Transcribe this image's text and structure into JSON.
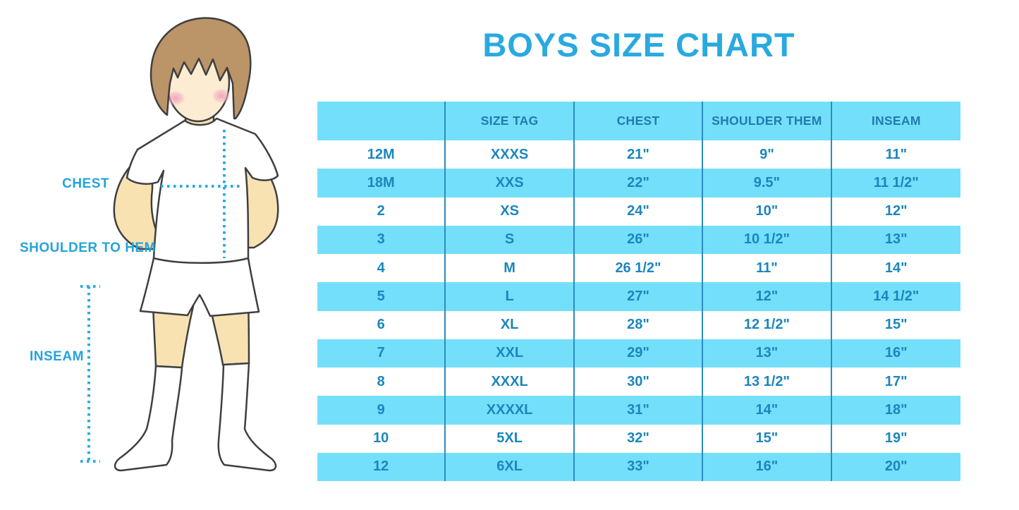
{
  "title": "BOYS SIZE CHART",
  "diagram": {
    "labels": {
      "chest": "CHEST",
      "shoulder_to_hem": "SHOULDER TO HEM",
      "inseam": "INSEAM"
    }
  },
  "chart_data": {
    "type": "table",
    "title": "BOYS SIZE CHART",
    "columns": [
      "",
      "SIZE TAG",
      "CHEST",
      "SHOULDER THEM",
      "INSEAM"
    ],
    "rows": [
      [
        "12M",
        "XXXS",
        "21\"",
        "9\"",
        "11\""
      ],
      [
        "18M",
        "XXS",
        "22\"",
        "9.5\"",
        "11 1/2\""
      ],
      [
        "2",
        "XS",
        "24\"",
        "10\"",
        "12\""
      ],
      [
        "3",
        "S",
        "26\"",
        "10 1/2\"",
        "13\""
      ],
      [
        "4",
        "M",
        "26 1/2\"",
        "11\"",
        "14\""
      ],
      [
        "5",
        "L",
        "27\"",
        "12\"",
        "14 1/2\""
      ],
      [
        "6",
        "XL",
        "28\"",
        "12 1/2\"",
        "15\""
      ],
      [
        "7",
        "XXL",
        "29\"",
        "13\"",
        "16\""
      ],
      [
        "8",
        "XXXL",
        "30\"",
        "13 1/2\"",
        "17\""
      ],
      [
        "9",
        "XXXXL",
        "31\"",
        "14\"",
        "18\""
      ],
      [
        "10",
        "5XL",
        "32\"",
        "15\"",
        "19\""
      ],
      [
        "12",
        "6XL",
        "33\"",
        "16\"",
        "20\""
      ]
    ],
    "layout": {
      "stripe_rows": "alternating starting with header",
      "grid": "vertical column dividers only"
    }
  },
  "colors": {
    "title": "#29a9e0",
    "label": "#24a3dc",
    "stripe_bg": "#74dffa",
    "header_text": "#1f7dab",
    "cell_text": "#1b86bd",
    "divider": "#2b8cbc",
    "dotted_line": "#2aabe3",
    "outline": "#3f3f3f",
    "skin": "#f9e2b2",
    "face": "#fbecd2",
    "hair": "#bb9468",
    "blush": "#f2a9bd"
  }
}
